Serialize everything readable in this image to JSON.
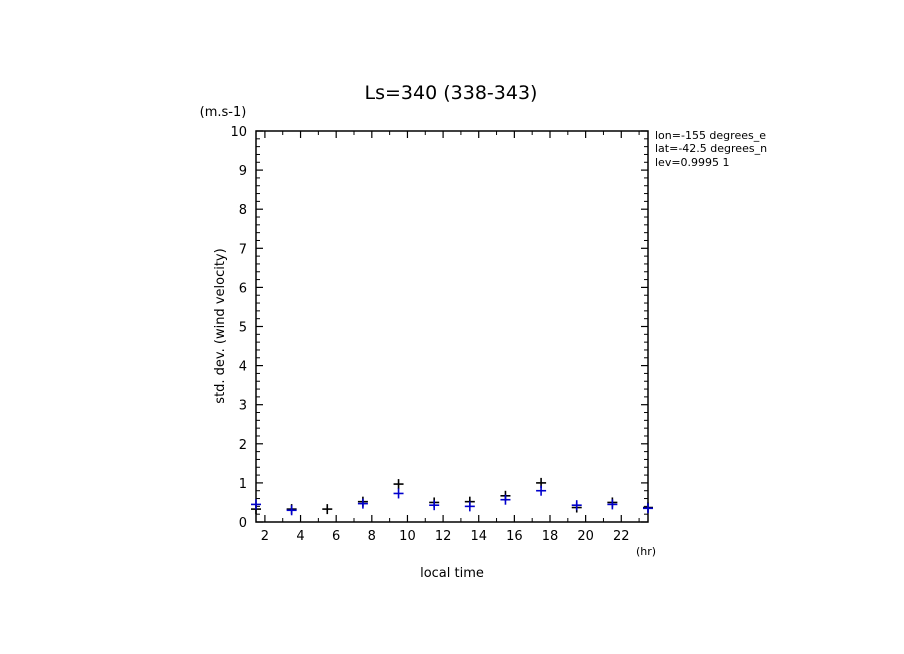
{
  "chart_data": {
    "type": "scatter",
    "title": "Ls=340 (338-343)",
    "xlabel": "local time",
    "ylabel": "std. dev. (wind velocity)",
    "x_unit": "(hr)",
    "y_unit": "(m.s-1)",
    "annotations": [
      "lon=-155 degrees_e",
      "lat=-42.5 degrees_n",
      "lev=0.9995 1"
    ],
    "xlim": [
      1.5,
      23.5
    ],
    "ylim": [
      0,
      10
    ],
    "x_ticks": [
      2,
      4,
      6,
      8,
      10,
      12,
      14,
      16,
      18,
      20,
      22
    ],
    "y_ticks": [
      0,
      1,
      2,
      3,
      4,
      5,
      6,
      7,
      8,
      9,
      10
    ],
    "grid": false,
    "series": [
      {
        "color": "#000000",
        "x": [
          1.5,
          3.5,
          5.5,
          7.5,
          9.5,
          11.5,
          13.5,
          15.5,
          17.5,
          19.5,
          21.5,
          23.5
        ],
        "y": [
          0.33,
          0.33,
          0.33,
          0.52,
          0.97,
          0.5,
          0.52,
          0.67,
          1.0,
          0.37,
          0.5,
          0.37
        ]
      },
      {
        "color": "#0000cc",
        "x": [
          1.5,
          3.5,
          7.5,
          9.5,
          11.5,
          13.5,
          15.5,
          17.5,
          19.5,
          21.5,
          23.5
        ],
        "y": [
          0.45,
          0.3,
          0.47,
          0.73,
          0.43,
          0.4,
          0.57,
          0.8,
          0.43,
          0.45,
          0.35
        ]
      }
    ]
  }
}
